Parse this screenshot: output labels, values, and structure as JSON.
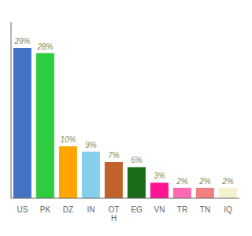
{
  "chart_data": {
    "type": "bar",
    "categories": [
      "US",
      "PK",
      "DZ",
      "IN",
      "OT\nH",
      "EG",
      "VN",
      "TR",
      "TN",
      "IQ"
    ],
    "values": [
      29,
      28,
      10,
      9,
      7,
      6,
      3,
      2,
      2,
      2
    ],
    "value_labels": [
      "29%",
      "28%",
      "10%",
      "9%",
      "7%",
      "6%",
      "3%",
      "2%",
      "2%",
      "2%"
    ],
    "data_labels": true,
    "colors": [
      "#4472c4",
      "#2ecc40",
      "#ffa500",
      "#87ceeb",
      "#c0622b",
      "#1a6b1a",
      "#ff1493",
      "#ff69b4",
      "#f08080",
      "#f5f0d0"
    ],
    "ylim": [
      0,
      34
    ],
    "tick_labels": "x",
    "grid": false
  }
}
